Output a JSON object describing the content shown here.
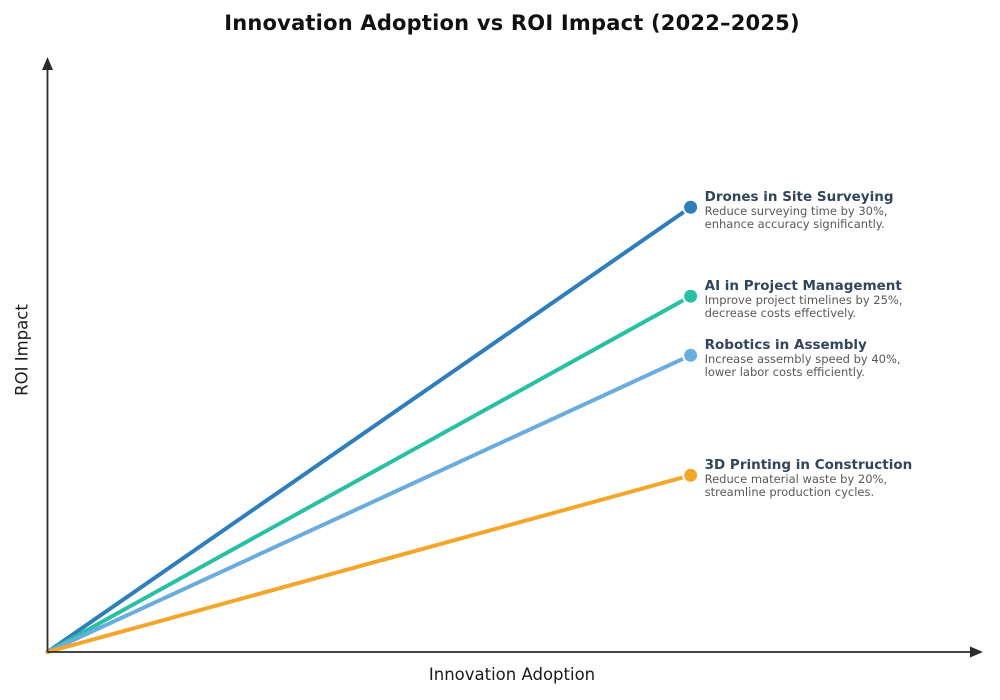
{
  "title": "Innovation Adoption vs ROI Impact (2022–2025)",
  "axes": {
    "x_label": "Innovation Adoption",
    "y_label": "ROI Impact"
  },
  "chart_data": {
    "type": "line",
    "title": "Innovation Adoption vs ROI Impact (2022–2025)",
    "xlabel": "Innovation Adoption",
    "ylabel": "ROI Impact",
    "tick_labels": "none",
    "grid": "off",
    "legend": "none (direct labels at line ends)",
    "axis_style": "arrowed axes from origin",
    "x_range_relative": [
      0,
      1
    ],
    "y_range_relative": [
      0,
      1
    ],
    "series": [
      {
        "name": "Drones in Site Surveying",
        "desc_line1": "Reduce surveying time by 30%,",
        "desc_line2": "enhance accuracy significantly.",
        "color": "#2e7ebc",
        "end_x": 0.686,
        "end_y": 0.745
      },
      {
        "name": "AI in Project Management",
        "desc_line1": "Improve project timelines by 25%,",
        "desc_line2": "decrease costs effectively.",
        "color": "#29bfa4",
        "end_x": 0.686,
        "end_y": 0.596
      },
      {
        "name": "Robotics in Assembly",
        "desc_line1": "Increase assembly speed by 40%,",
        "desc_line2": "lower labor costs efficiently.",
        "color": "#69acdd",
        "end_x": 0.686,
        "end_y": 0.497
      },
      {
        "name": "3D Printing in Construction",
        "desc_line1": "Reduce material waste by 20%,",
        "desc_line2": "streamline production cycles.",
        "color": "#f5a62a",
        "end_x": 0.686,
        "end_y": 0.296
      }
    ]
  },
  "style": {
    "axis_color": "#2b2b2b",
    "title_color": "#111111",
    "label_title_color": "#31455c",
    "label_desc_color": "#55585c",
    "background": "#ffffff"
  }
}
